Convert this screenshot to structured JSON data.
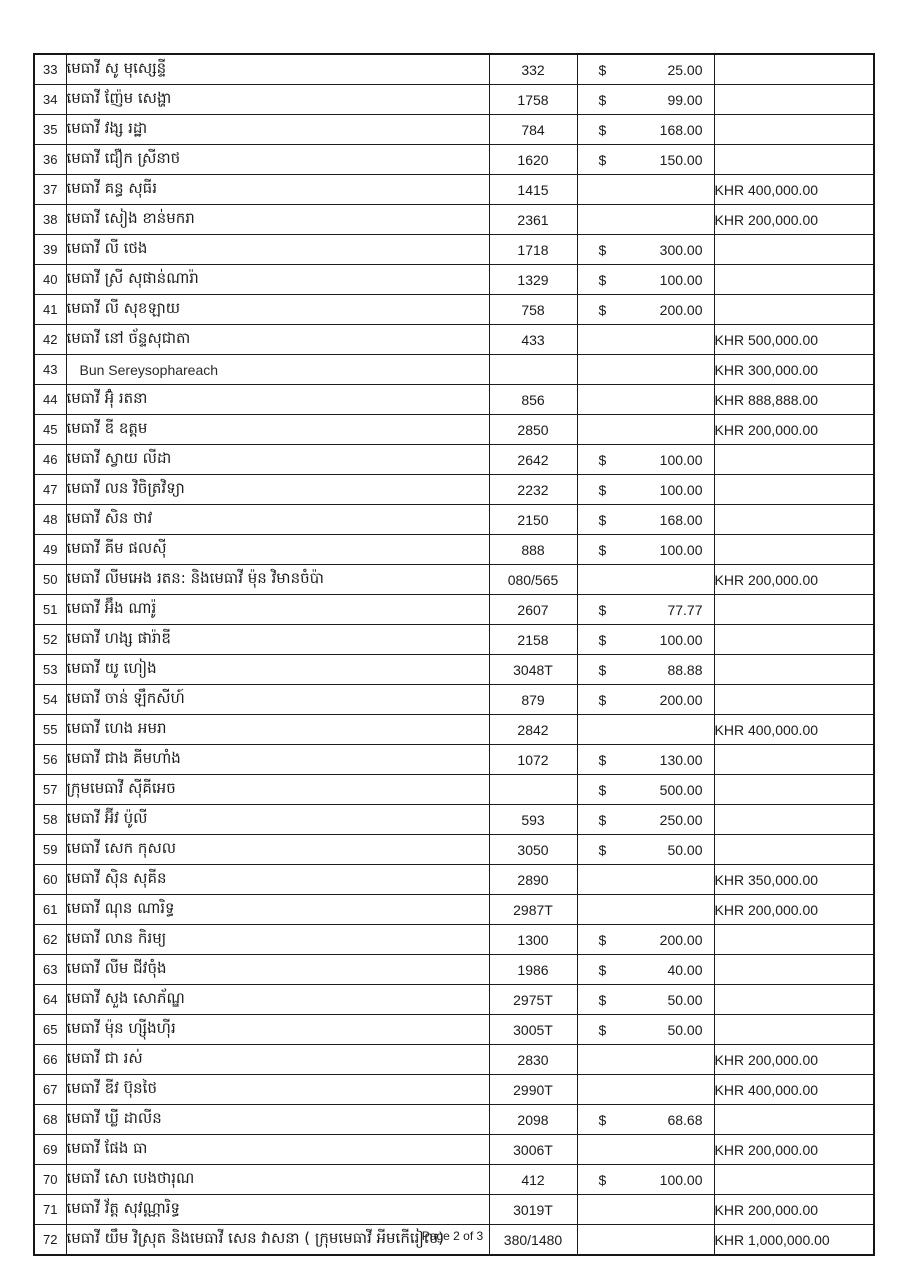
{
  "document": {
    "footer": {
      "page_label": "Page 2 of 3"
    },
    "table": {
      "currency_symbol": "$",
      "khr_prefix": "KHR",
      "rows": [
        {
          "no": "33",
          "name": "មេធាវី សូ មុស្សេន្ទី",
          "case_no": "332",
          "usd": "25.00",
          "khr": ""
        },
        {
          "no": "34",
          "name": "មេធាវី ញ៉ែម សេង្ហា",
          "case_no": "1758",
          "usd": "99.00",
          "khr": ""
        },
        {
          "no": "35",
          "name": "មេធាវី វង្ស រដ្ឋា",
          "case_no": "784",
          "usd": "168.00",
          "khr": ""
        },
        {
          "no": "36",
          "name": "មេធាវី ជឿក ស្រីនាថ",
          "case_no": "1620",
          "usd": "150.00",
          "khr": ""
        },
        {
          "no": "37",
          "name": "មេធាវី គន្ធ សុធីរ",
          "case_no": "1415",
          "usd": "",
          "khr": "KHR 400,000.00"
        },
        {
          "no": "38",
          "name": "មេធាវី សៀង ខាន់មករា",
          "case_no": "2361",
          "usd": "",
          "khr": "KHR 200,000.00"
        },
        {
          "no": "39",
          "name": "មេធាវី លី ថេង",
          "case_no": "1718",
          "usd": "300.00",
          "khr": ""
        },
        {
          "no": "40",
          "name": "មេធាវី ស្រី សុផាន់ណារ៉ា",
          "case_no": "1329",
          "usd": "100.00",
          "khr": ""
        },
        {
          "no": "41",
          "name": "មេធាវី លី សុខឡាយ",
          "case_no": "758",
          "usd": "200.00",
          "khr": ""
        },
        {
          "no": "42",
          "name": "មេធាវី នៅ ច័ន្ទសុជាតា",
          "case_no": "433",
          "usd": "",
          "khr": "KHR 500,000.00"
        },
        {
          "no": "43",
          "name": "Bun Sereysophareach",
          "case_no": "",
          "usd": "",
          "khr": "KHR 300,000.00"
        },
        {
          "no": "44",
          "name": "មេធាវី អ៊ុំ រតនា",
          "case_no": "856",
          "usd": "",
          "khr": "KHR 888,888.00"
        },
        {
          "no": "45",
          "name": "មេធាវី ឌី ឧត្តម",
          "case_no": "2850",
          "usd": "",
          "khr": "KHR 200,000.00"
        },
        {
          "no": "46",
          "name": "មេធាវី ស្វាយ លីដា",
          "case_no": "2642",
          "usd": "100.00",
          "khr": ""
        },
        {
          "no": "47",
          "name": "មេធាវី លន វិចិត្រវិទ្យា",
          "case_no": "2232",
          "usd": "100.00",
          "khr": ""
        },
        {
          "no": "48",
          "name": "មេធាវី សិន ថាវ",
          "case_no": "2150",
          "usd": "168.00",
          "khr": ""
        },
        {
          "no": "49",
          "name": "មេធាវី គីម ផលស៊ី",
          "case_no": "888",
          "usd": "100.00",
          "khr": ""
        },
        {
          "no": "50",
          "name": "មេធាវី លីមអេង រតន: និងមេធាវី ម៉ុន វិមានចំប៉ា",
          "case_no": "080/565",
          "usd": "",
          "khr": "KHR 200,000.00"
        },
        {
          "no": "51",
          "name": "មេធាវី អ៊ឹង ណារ៉ូ",
          "case_no": "2607",
          "usd": "77.77",
          "khr": ""
        },
        {
          "no": "52",
          "name": "មេធាវី ហង្ស ផារ៉ាឌី",
          "case_no": "2158",
          "usd": "100.00",
          "khr": ""
        },
        {
          "no": "53",
          "name": "មេធាវី យូ ហៀង",
          "case_no": "3048T",
          "usd": "88.88",
          "khr": ""
        },
        {
          "no": "54",
          "name": "មេធាវី ចាន់ ឡឹកសីហ៍",
          "case_no": "879",
          "usd": "200.00",
          "khr": ""
        },
        {
          "no": "55",
          "name": "មេធាវី ហេង អមរា",
          "case_no": "2842",
          "usd": "",
          "khr": "KHR 400,000.00"
        },
        {
          "no": "56",
          "name": "មេធាវី ជាង គីមហាំង",
          "case_no": "1072",
          "usd": "130.00",
          "khr": ""
        },
        {
          "no": "57",
          "name": "ក្រុមមេធាវី ស៊ីគីអេច",
          "case_no": "",
          "usd": "500.00",
          "khr": ""
        },
        {
          "no": "58",
          "name": "មេធាវី អ៊ីវ ប៉ូលី",
          "case_no": "593",
          "usd": "250.00",
          "khr": ""
        },
        {
          "no": "59",
          "name": "មេធាវី សេក កុសល",
          "case_no": "3050",
          "usd": "50.00",
          "khr": ""
        },
        {
          "no": "60",
          "name": "មេធាវី ស៊ិន សុគីន",
          "case_no": "2890",
          "usd": "",
          "khr": "KHR 350,000.00"
        },
        {
          "no": "61",
          "name": "មេធាវី ណុន ណារិទ្ធ",
          "case_no": "2987T",
          "usd": "",
          "khr": "KHR 200,000.00"
        },
        {
          "no": "62",
          "name": "មេធាវី លាន កិរម្យ",
          "case_no": "1300",
          "usd": "200.00",
          "khr": ""
        },
        {
          "no": "63",
          "name": "មេធាវី លីម ជីវចុំង",
          "case_no": "1986",
          "usd": "40.00",
          "khr": ""
        },
        {
          "no": "64",
          "name": "មេធាវី សួង សោភ័ណ្ឌ",
          "case_no": "2975T",
          "usd": "50.00",
          "khr": ""
        },
        {
          "no": "65",
          "name": "មេធាវី ម៉ុន ហ្ស៊ីងហ៊ីរ",
          "case_no": "3005T",
          "usd": "50.00",
          "khr": ""
        },
        {
          "no": "66",
          "name": "មេធាវី ជា រស់",
          "case_no": "2830",
          "usd": "",
          "khr": "KHR 200,000.00"
        },
        {
          "no": "67",
          "name": "មេធាវី ឌីវ ប៊ុនថៃ",
          "case_no": "2990T",
          "usd": "",
          "khr": "KHR 400,000.00"
        },
        {
          "no": "68",
          "name": "មេធាវី ឃ្លី ដាលីន",
          "case_no": "2098",
          "usd": "68.68",
          "khr": ""
        },
        {
          "no": "69",
          "name": "មេធាវី ផែង ធា",
          "case_no": "3006T",
          "usd": "",
          "khr": "KHR 200,000.00"
        },
        {
          "no": "70",
          "name": "មេធាវី សោ បេងថារុណ",
          "case_no": "412",
          "usd": "100.00",
          "khr": ""
        },
        {
          "no": "71",
          "name": "មេធាវី វ័ត្ត សុវណ្ណារិទ្ធ",
          "case_no": "3019T",
          "usd": "",
          "khr": "KHR 200,000.00"
        },
        {
          "no": "72",
          "name": "មេធាវី យឹម វិស្រុត និងមេធាវី សេន វាសនា ( ក្រុមមេធាវី អីមកើរៀល)",
          "case_no": "380/1480",
          "usd": "",
          "khr": "KHR 1,000,000.00"
        }
      ]
    }
  }
}
